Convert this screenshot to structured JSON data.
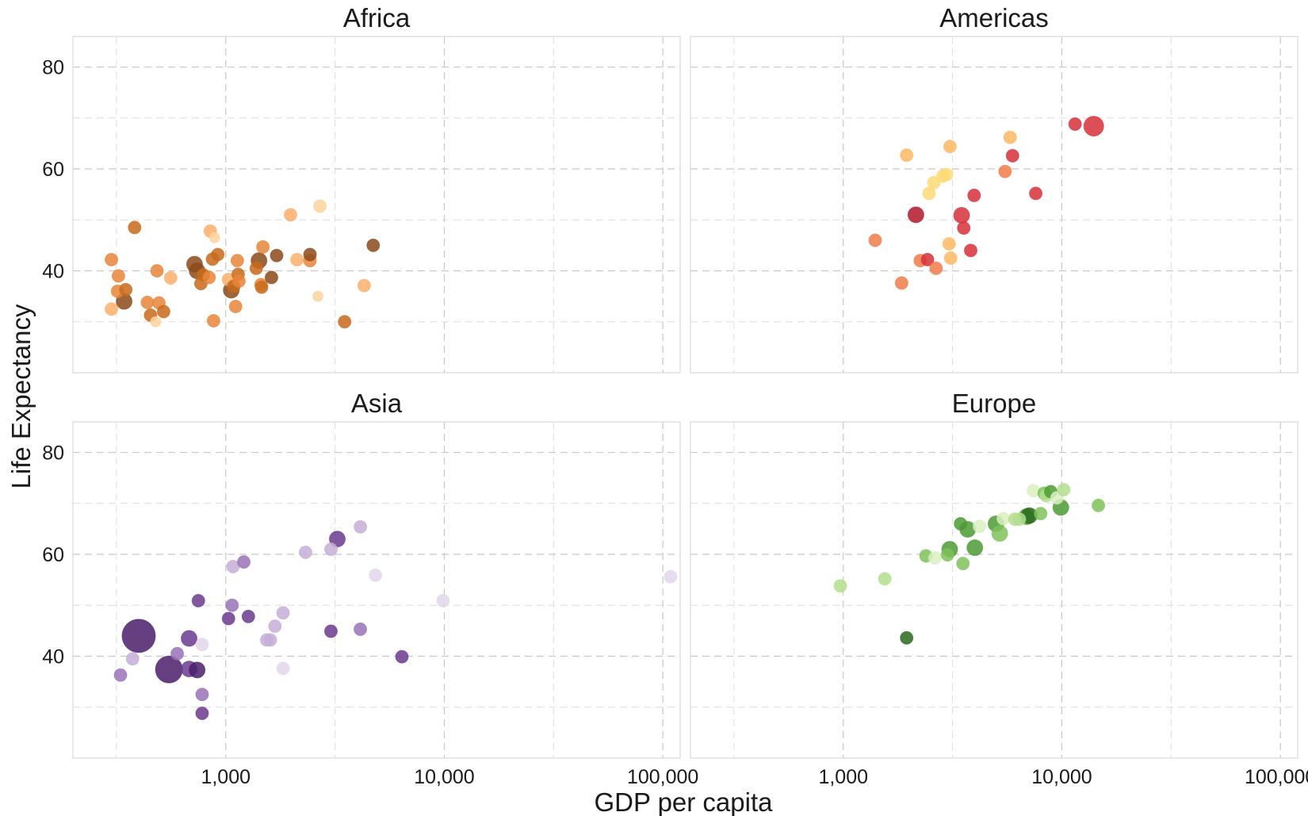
{
  "chart_data": {
    "type": "scatter",
    "xlabel": "GDP per capita",
    "ylabel": "Life Expectancy",
    "x_scale": "log",
    "xlim": [
      200,
      120000
    ],
    "ylim": [
      20,
      86
    ],
    "x_ticks": [
      {
        "value": 1000,
        "label": "1,000"
      },
      {
        "value": 10000,
        "label": "10,000"
      },
      {
        "value": 100000,
        "label": "100,000"
      }
    ],
    "y_ticks": [
      {
        "value": 40,
        "label": "40"
      },
      {
        "value": 60,
        "label": "60"
      },
      {
        "value": 80,
        "label": "80"
      }
    ],
    "x_minor": [
      316.2,
      3162.3,
      31622.8
    ],
    "y_minor": [
      30,
      50,
      70
    ],
    "grid": true,
    "panels": [
      {
        "title": "Africa",
        "colors": [
          "#fdd49e",
          "#fdae6b",
          "#e6853a",
          "#c86a1a",
          "#8c4a1a"
        ],
        "points": [
          {
            "x": 300,
            "y": 42.2,
            "s": 1,
            "c": 2
          },
          {
            "x": 323,
            "y": 39,
            "s": 1,
            "c": 2
          },
          {
            "x": 320,
            "y": 36,
            "s": 1,
            "c": 2
          },
          {
            "x": 300,
            "y": 32.5,
            "s": 1,
            "c": 1
          },
          {
            "x": 349,
            "y": 36.3,
            "s": 1,
            "c": 3
          },
          {
            "x": 343,
            "y": 34,
            "s": 2,
            "c": 4
          },
          {
            "x": 383,
            "y": 48.5,
            "s": 1,
            "c": 3
          },
          {
            "x": 438,
            "y": 33.8,
            "s": 1,
            "c": 2
          },
          {
            "x": 453,
            "y": 31.3,
            "s": 1,
            "c": 3
          },
          {
            "x": 478,
            "y": 30,
            "s": 0,
            "c": 0
          },
          {
            "x": 485,
            "y": 40,
            "s": 1,
            "c": 2
          },
          {
            "x": 495,
            "y": 33.7,
            "s": 1,
            "c": 2
          },
          {
            "x": 520,
            "y": 32,
            "s": 1,
            "c": 3
          },
          {
            "x": 560,
            "y": 38.6,
            "s": 1,
            "c": 1
          },
          {
            "x": 720,
            "y": 41.3,
            "s": 2,
            "c": 4
          },
          {
            "x": 740,
            "y": 40,
            "s": 2,
            "c": 4
          },
          {
            "x": 770,
            "y": 37.5,
            "s": 1,
            "c": 3
          },
          {
            "x": 790,
            "y": 39.2,
            "s": 1,
            "c": 3
          },
          {
            "x": 840,
            "y": 38.7,
            "s": 1,
            "c": 2
          },
          {
            "x": 850,
            "y": 47.8,
            "s": 1,
            "c": 1
          },
          {
            "x": 870,
            "y": 42.3,
            "s": 1,
            "c": 3
          },
          {
            "x": 880,
            "y": 30.2,
            "s": 1,
            "c": 2
          },
          {
            "x": 890,
            "y": 46.5,
            "s": 0,
            "c": 0
          },
          {
            "x": 920,
            "y": 43.2,
            "s": 1,
            "c": 3
          },
          {
            "x": 1030,
            "y": 38.3,
            "s": 1,
            "c": 1
          },
          {
            "x": 1060,
            "y": 36.2,
            "s": 2,
            "c": 4
          },
          {
            "x": 1090,
            "y": 37,
            "s": 1,
            "c": 3
          },
          {
            "x": 1110,
            "y": 33,
            "s": 1,
            "c": 2
          },
          {
            "x": 1130,
            "y": 42,
            "s": 1,
            "c": 2
          },
          {
            "x": 1140,
            "y": 39.3,
            "s": 1,
            "c": 3
          },
          {
            "x": 1150,
            "y": 38,
            "s": 1,
            "c": 2
          },
          {
            "x": 1380,
            "y": 40.5,
            "s": 1,
            "c": 3
          },
          {
            "x": 1420,
            "y": 42,
            "s": 2,
            "c": 4
          },
          {
            "x": 1450,
            "y": 37.3,
            "s": 1,
            "c": 2
          },
          {
            "x": 1460,
            "y": 36.8,
            "s": 1,
            "c": 3
          },
          {
            "x": 1480,
            "y": 44.7,
            "s": 1,
            "c": 2
          },
          {
            "x": 1620,
            "y": 38.7,
            "s": 1,
            "c": 4
          },
          {
            "x": 1710,
            "y": 43,
            "s": 1,
            "c": 4
          },
          {
            "x": 1980,
            "y": 51,
            "s": 1,
            "c": 1
          },
          {
            "x": 2120,
            "y": 42.2,
            "s": 1,
            "c": 1
          },
          {
            "x": 2430,
            "y": 42,
            "s": 1,
            "c": 2
          },
          {
            "x": 2430,
            "y": 43.2,
            "s": 1,
            "c": 4
          },
          {
            "x": 2640,
            "y": 35,
            "s": 0,
            "c": 0
          },
          {
            "x": 2700,
            "y": 52.7,
            "s": 1,
            "c": 0
          },
          {
            "x": 3500,
            "y": 30,
            "s": 1,
            "c": 3
          },
          {
            "x": 4300,
            "y": 37.1,
            "s": 1,
            "c": 1
          },
          {
            "x": 4730,
            "y": 45,
            "s": 1,
            "c": 4
          }
        ]
      },
      {
        "title": "Americas",
        "colors": [
          "#fed976",
          "#fdb863",
          "#f07d4a",
          "#d7303a",
          "#b2182b"
        ],
        "points": [
          {
            "x": 1400,
            "y": 46,
            "s": 1,
            "c": 2
          },
          {
            "x": 1850,
            "y": 37.6,
            "s": 1,
            "c": 2
          },
          {
            "x": 1950,
            "y": 62.7,
            "s": 1,
            "c": 1
          },
          {
            "x": 2150,
            "y": 51,
            "s": 2,
            "c": 4
          },
          {
            "x": 2250,
            "y": 42,
            "s": 1,
            "c": 2
          },
          {
            "x": 2430,
            "y": 42.2,
            "s": 1,
            "c": 3
          },
          {
            "x": 2470,
            "y": 55.2,
            "s": 1,
            "c": 0
          },
          {
            "x": 2600,
            "y": 57.3,
            "s": 1,
            "c": 0
          },
          {
            "x": 2660,
            "y": 40.5,
            "s": 1,
            "c": 2
          },
          {
            "x": 2860,
            "y": 58.6,
            "s": 1,
            "c": 0
          },
          {
            "x": 2970,
            "y": 58.9,
            "s": 1,
            "c": 0
          },
          {
            "x": 3050,
            "y": 45.3,
            "s": 1,
            "c": 1
          },
          {
            "x": 3080,
            "y": 64.4,
            "s": 1,
            "c": 1
          },
          {
            "x": 3100,
            "y": 42.5,
            "s": 1,
            "c": 1
          },
          {
            "x": 3480,
            "y": 50.9,
            "s": 2,
            "c": 3
          },
          {
            "x": 3560,
            "y": 48.4,
            "s": 1,
            "c": 3
          },
          {
            "x": 3830,
            "y": 44,
            "s": 1,
            "c": 3
          },
          {
            "x": 3970,
            "y": 54.8,
            "s": 1,
            "c": 3
          },
          {
            "x": 5500,
            "y": 59.5,
            "s": 1,
            "c": 2
          },
          {
            "x": 5800,
            "y": 66.2,
            "s": 1,
            "c": 1
          },
          {
            "x": 5950,
            "y": 62.6,
            "s": 1,
            "c": 3
          },
          {
            "x": 7600,
            "y": 55.2,
            "s": 1,
            "c": 3
          },
          {
            "x": 11500,
            "y": 68.8,
            "s": 1,
            "c": 3
          },
          {
            "x": 14000,
            "y": 68.4,
            "s": 3,
            "c": 3
          }
        ]
      },
      {
        "title": "Asia",
        "colors": [
          "#e3d6ea",
          "#c6aed6",
          "#9a72b8",
          "#6b3a8f",
          "#4a1d6a"
        ],
        "points": [
          {
            "x": 330,
            "y": 36.3,
            "s": 1,
            "c": 2
          },
          {
            "x": 375,
            "y": 39.5,
            "s": 1,
            "c": 1
          },
          {
            "x": 400,
            "y": 44,
            "s": 5,
            "c": 4
          },
          {
            "x": 550,
            "y": 37.4,
            "s": 4,
            "c": 4
          },
          {
            "x": 600,
            "y": 40.5,
            "s": 1,
            "c": 2
          },
          {
            "x": 680,
            "y": 43.5,
            "s": 2,
            "c": 3
          },
          {
            "x": 680,
            "y": 37.5,
            "s": 2,
            "c": 3
          },
          {
            "x": 740,
            "y": 37.3,
            "s": 2,
            "c": 4
          },
          {
            "x": 750,
            "y": 50.9,
            "s": 1,
            "c": 3
          },
          {
            "x": 780,
            "y": 42.3,
            "s": 1,
            "c": 0
          },
          {
            "x": 780,
            "y": 32.5,
            "s": 1,
            "c": 2
          },
          {
            "x": 780,
            "y": 28.8,
            "s": 1,
            "c": 3
          },
          {
            "x": 1030,
            "y": 47.4,
            "s": 1,
            "c": 3
          },
          {
            "x": 1070,
            "y": 50,
            "s": 1,
            "c": 2
          },
          {
            "x": 1080,
            "y": 57.6,
            "s": 1,
            "c": 1
          },
          {
            "x": 1210,
            "y": 58.5,
            "s": 1,
            "c": 2
          },
          {
            "x": 1270,
            "y": 47.8,
            "s": 1,
            "c": 3
          },
          {
            "x": 1540,
            "y": 43.2,
            "s": 1,
            "c": 1
          },
          {
            "x": 1600,
            "y": 43.2,
            "s": 1,
            "c": 1
          },
          {
            "x": 1680,
            "y": 45.9,
            "s": 1,
            "c": 1
          },
          {
            "x": 1830,
            "y": 48.5,
            "s": 1,
            "c": 1
          },
          {
            "x": 1830,
            "y": 37.6,
            "s": 1,
            "c": 0
          },
          {
            "x": 2320,
            "y": 60.4,
            "s": 1,
            "c": 1
          },
          {
            "x": 3030,
            "y": 61,
            "s": 1,
            "c": 1
          },
          {
            "x": 3030,
            "y": 44.9,
            "s": 1,
            "c": 3
          },
          {
            "x": 3240,
            "y": 63,
            "s": 2,
            "c": 3
          },
          {
            "x": 4130,
            "y": 65.4,
            "s": 1,
            "c": 1
          },
          {
            "x": 4130,
            "y": 45.3,
            "s": 1,
            "c": 2
          },
          {
            "x": 4840,
            "y": 55.9,
            "s": 1,
            "c": 0
          },
          {
            "x": 6400,
            "y": 39.9,
            "s": 1,
            "c": 3
          },
          {
            "x": 9870,
            "y": 50.9,
            "s": 1,
            "c": 0
          },
          {
            "x": 108400,
            "y": 55.6,
            "s": 1,
            "c": 0
          }
        ]
      },
      {
        "title": "Europe",
        "colors": [
          "#d9f0c0",
          "#b3de8e",
          "#7fc25a",
          "#4d9a35",
          "#2a6a1d"
        ],
        "points": [
          {
            "x": 970,
            "y": 53.8,
            "s": 1,
            "c": 1
          },
          {
            "x": 1550,
            "y": 55.2,
            "s": 1,
            "c": 1
          },
          {
            "x": 1950,
            "y": 43.6,
            "s": 1,
            "c": 4
          },
          {
            "x": 2390,
            "y": 59.7,
            "s": 1,
            "c": 2
          },
          {
            "x": 2630,
            "y": 59.3,
            "s": 1,
            "c": 0
          },
          {
            "x": 3000,
            "y": 59.9,
            "s": 1,
            "c": 2
          },
          {
            "x": 3070,
            "y": 61,
            "s": 2,
            "c": 3
          },
          {
            "x": 3440,
            "y": 66,
            "s": 1,
            "c": 3
          },
          {
            "x": 3530,
            "y": 58.2,
            "s": 1,
            "c": 2
          },
          {
            "x": 3710,
            "y": 64.9,
            "s": 2,
            "c": 3
          },
          {
            "x": 4000,
            "y": 61.3,
            "s": 2,
            "c": 3
          },
          {
            "x": 4200,
            "y": 65.5,
            "s": 1,
            "c": 0
          },
          {
            "x": 5000,
            "y": 66,
            "s": 2,
            "c": 3
          },
          {
            "x": 5200,
            "y": 64.1,
            "s": 2,
            "c": 2
          },
          {
            "x": 5400,
            "y": 67,
            "s": 1,
            "c": 0
          },
          {
            "x": 6100,
            "y": 66.9,
            "s": 1,
            "c": 1
          },
          {
            "x": 6400,
            "y": 66.9,
            "s": 1,
            "c": 1
          },
          {
            "x": 6900,
            "y": 67.4,
            "s": 2,
            "c": 3
          },
          {
            "x": 7100,
            "y": 67.6,
            "s": 2,
            "c": 4
          },
          {
            "x": 7400,
            "y": 72.5,
            "s": 1,
            "c": 0
          },
          {
            "x": 8000,
            "y": 68,
            "s": 1,
            "c": 2
          },
          {
            "x": 8300,
            "y": 72,
            "s": 1,
            "c": 2
          },
          {
            "x": 8500,
            "y": 71.5,
            "s": 1,
            "c": 1
          },
          {
            "x": 8900,
            "y": 72.3,
            "s": 1,
            "c": 3
          },
          {
            "x": 9500,
            "y": 71.1,
            "s": 1,
            "c": 0
          },
          {
            "x": 9900,
            "y": 69.2,
            "s": 2,
            "c": 3
          },
          {
            "x": 10200,
            "y": 72.7,
            "s": 1,
            "c": 1
          },
          {
            "x": 14700,
            "y": 69.6,
            "s": 1,
            "c": 2
          }
        ]
      }
    ]
  }
}
